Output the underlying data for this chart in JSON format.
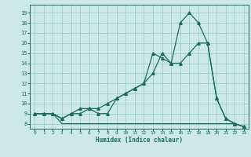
{
  "xlabel": "Humidex (Indice chaleur)",
  "xlim": [
    -0.5,
    23.5
  ],
  "ylim": [
    7.5,
    19.8
  ],
  "yticks": [
    8,
    9,
    10,
    11,
    12,
    13,
    14,
    15,
    16,
    17,
    18,
    19
  ],
  "xticks": [
    0,
    1,
    2,
    3,
    4,
    5,
    6,
    7,
    8,
    9,
    10,
    11,
    12,
    13,
    14,
    15,
    16,
    17,
    18,
    19,
    20,
    21,
    22,
    23
  ],
  "bg_color": "#cce9e5",
  "grid_color": "#99cfc8",
  "line_color": "#1a6b5a",
  "line1_x": [
    0,
    1,
    2,
    3,
    4,
    5,
    6,
    7,
    8,
    9,
    10,
    11,
    12,
    13,
    14,
    15,
    16,
    17,
    18,
    19,
    20,
    21,
    22,
    23
  ],
  "line1_y": [
    9,
    9,
    9,
    8.5,
    9,
    9,
    9.5,
    9,
    9,
    10.5,
    11,
    11.5,
    12,
    13,
    15,
    14,
    18,
    19,
    18,
    16,
    10.5,
    8.5,
    8,
    7.7
  ],
  "line2_x": [
    0,
    1,
    2,
    3,
    4,
    5,
    6,
    7,
    8,
    9,
    10,
    11,
    12,
    13,
    14,
    15,
    16,
    17,
    18,
    19,
    20,
    21,
    22,
    23
  ],
  "line2_y": [
    9,
    9,
    9,
    8.5,
    9,
    9.5,
    9.5,
    9.5,
    10,
    10.5,
    11,
    11.5,
    12,
    15,
    14.5,
    14,
    14,
    15,
    16,
    16,
    10.5,
    8.5,
    8,
    7.7
  ],
  "line3_x": [
    0,
    1,
    2,
    3,
    4,
    5,
    6,
    7,
    8,
    9,
    10,
    11,
    12,
    13,
    14,
    15,
    16,
    17,
    18,
    19,
    20,
    21,
    22,
    23
  ],
  "line3_y": [
    9,
    9,
    9,
    8,
    8,
    8,
    8,
    8,
    8,
    8,
    8,
    8,
    8,
    8,
    8,
    8,
    8,
    8,
    8,
    8,
    8,
    8,
    8,
    7.7
  ]
}
